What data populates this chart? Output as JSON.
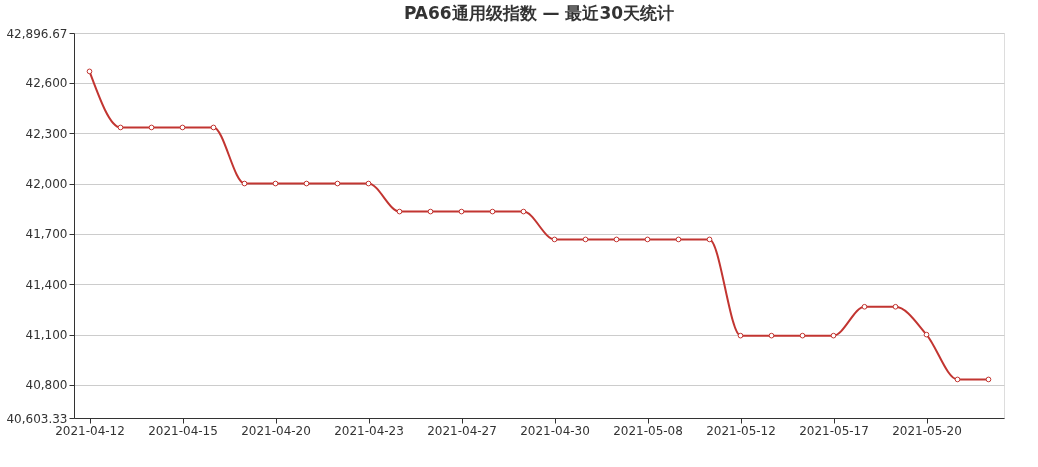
{
  "chart_data": {
    "type": "line",
    "title": "PA66通用级指数  —  最近30天统计",
    "categories": [
      "2021-04-12",
      null,
      null,
      "2021-04-15",
      null,
      null,
      "2021-04-20",
      null,
      null,
      "2021-04-23",
      null,
      null,
      "2021-04-27",
      null,
      null,
      "2021-04-30",
      null,
      null,
      "2021-05-08",
      null,
      null,
      "2021-05-12",
      null,
      null,
      "2021-05-17",
      null,
      null,
      "2021-05-20",
      null,
      null
    ],
    "series": [
      {
        "color": "#c23531",
        "values": [
          42668,
          42334,
          42334,
          42334,
          42334,
          42000,
          42000,
          42000,
          42000,
          42000,
          41833,
          41833,
          41833,
          41833,
          41833,
          41667,
          41667,
          41667,
          41667,
          41667,
          41667,
          41094,
          41094,
          41094,
          41094,
          41266,
          41266,
          41100,
          40833,
          40833
        ]
      }
    ],
    "ylim": [
      40603.33,
      42896.67
    ],
    "yticks": [
      {
        "value": 40603.33,
        "label": "40,603.33"
      },
      {
        "value": 40800,
        "label": "40,800"
      },
      {
        "value": 41100,
        "label": "41,100"
      },
      {
        "value": 41400,
        "label": "41,400"
      },
      {
        "value": 41700,
        "label": "41,700"
      },
      {
        "value": 42000,
        "label": "42,000"
      },
      {
        "value": 42300,
        "label": "42,300"
      },
      {
        "value": 42600,
        "label": "42,600"
      },
      {
        "value": 42896.67,
        "label": "42,896.67"
      }
    ],
    "grid": "y",
    "marker": "circle"
  }
}
